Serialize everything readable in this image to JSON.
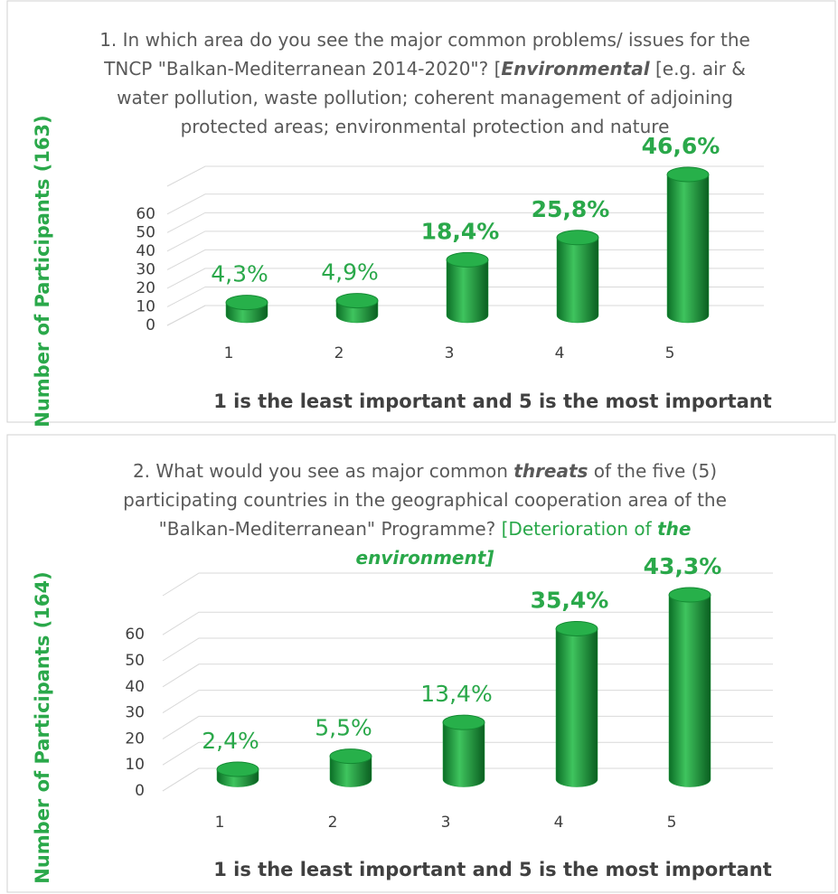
{
  "chart_data": [
    {
      "type": "bar",
      "title": [
        "1. In which area do you see the major common problems/ issues for the TNCP \"Balkan-Mediterranean 2014-2020\"? [",
        "Environmental",
        " [e.g. air & water pollution, waste pollution; coherent management of adjoining protected areas; environmental protection and nature"
      ],
      "y_label": "Number of Participants (163)",
      "x_label": "1 is the least important and 5 is the most important",
      "categories": [
        "1",
        "2",
        "3",
        "4",
        "5"
      ],
      "values": [
        7,
        8,
        30,
        42,
        76
      ],
      "percentages": [
        4.3,
        4.9,
        18.4,
        25.8,
        46.6
      ],
      "percentage_labels": [
        "4,3%",
        "4,9%",
        "18,4%",
        "25,8%",
        "46,6%"
      ],
      "color": "#1e9e3e",
      "ylim": [
        0,
        75
      ],
      "yticks": [
        0,
        10,
        20,
        30,
        40,
        50,
        60
      ],
      "grid": true
    },
    {
      "type": "bar",
      "title": [
        "2. What would you see as major common ",
        "threats",
        " of the five (5) participating countries in the geographical cooperation area of the \"Balkan-Mediterranean\" Programme? ",
        "[Deterioration of ",
        "the environment]"
      ],
      "y_label": "Number of Participants (164)",
      "x_label": "1 is the least important and 5 is the most important",
      "categories": [
        "1",
        "2",
        "3",
        "4",
        "5"
      ],
      "values": [
        4,
        9,
        22,
        58,
        71
      ],
      "percentages": [
        2.4,
        5.5,
        13.4,
        35.4,
        43.3
      ],
      "percentage_labels": [
        "2,4%",
        "5,5%",
        "13,4%",
        "35,4%",
        "43,3%"
      ],
      "color": "#1e9e3e",
      "ylim": [
        0,
        75
      ],
      "yticks": [
        0,
        10,
        20,
        30,
        40,
        50,
        60
      ],
      "grid": true
    }
  ]
}
